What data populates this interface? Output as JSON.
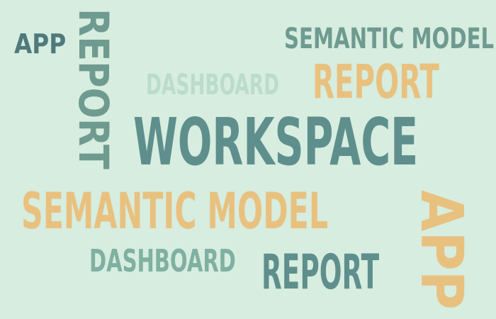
{
  "background_color": "#d6ede0",
  "words": {
    "app_small": "APP",
    "report_vertical": "REPORT",
    "semantic_model_top": "SEMANTIC MODEL",
    "dashboard_top": "DASHBOARD",
    "report_orange": "REPORT",
    "workspace": "WORKSPACE",
    "semantic_model_bottom": "SEMANTIC MODEL",
    "app_vertical": "APP",
    "dashboard_bottom": "DASHBOARD",
    "report_bottom": "REPORT"
  },
  "colors": {
    "teal_dark": "#5f8f8c",
    "teal_mid": "#6f9a90",
    "teal_light": "#bcdcca",
    "orange": "#e9c17f"
  }
}
